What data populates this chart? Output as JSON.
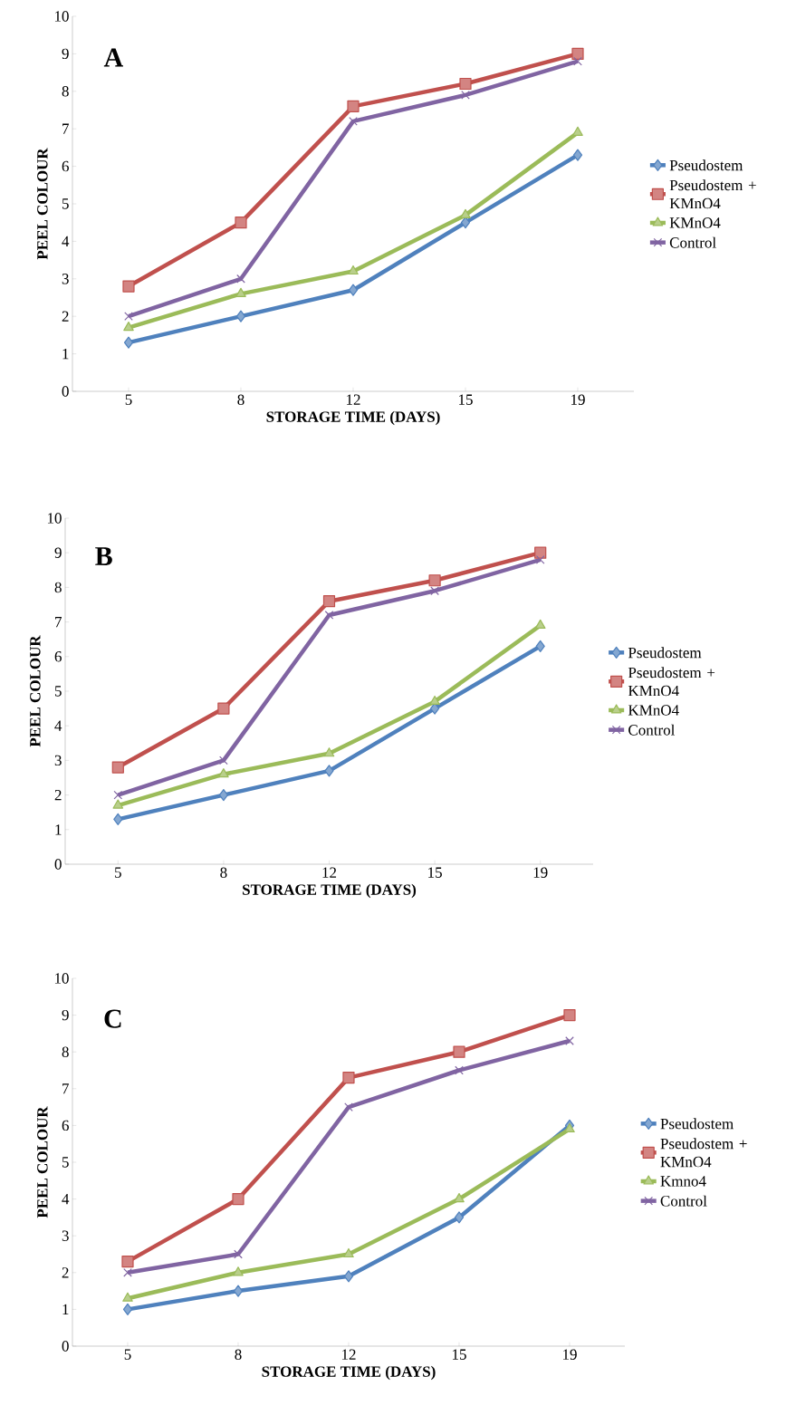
{
  "chart_data": [
    {
      "type": "line",
      "annotations": [
        "A"
      ],
      "xlabel": "STORAGE TIME (DAYS)",
      "ylabel": "PEEL COLOUR",
      "categories": [
        "5",
        "8",
        "12",
        "15",
        "19"
      ],
      "ylim": [
        0,
        10
      ],
      "yticks": [
        0,
        1,
        2,
        3,
        4,
        5,
        6,
        7,
        8,
        9,
        10
      ],
      "legend": "right",
      "grid": false,
      "line_style": "solid",
      "series": [
        {
          "name": "Pseudostem",
          "color": "#4f81bd",
          "marker": "diamond",
          "values": [
            1.3,
            2.0,
            2.7,
            4.5,
            6.3
          ]
        },
        {
          "name": "Pseudostem + KMnO4",
          "color": "#c0504d",
          "marker": "square",
          "values": [
            2.8,
            4.5,
            7.6,
            8.2,
            9.0
          ]
        },
        {
          "name": "KMnO4",
          "color": "#9bbb59",
          "marker": "triangle",
          "values": [
            1.7,
            2.6,
            3.2,
            4.7,
            6.9
          ]
        },
        {
          "name": "Control",
          "color": "#8064a2",
          "marker": "cross",
          "values": [
            2.0,
            3.0,
            7.2,
            7.9,
            8.8
          ]
        }
      ]
    },
    {
      "type": "line",
      "annotations": [
        "B"
      ],
      "xlabel": "STORAGE TIME (DAYS)",
      "ylabel": "PEEL COLOUR",
      "categories": [
        "5",
        "8",
        "12",
        "15",
        "19"
      ],
      "ylim": [
        0,
        10
      ],
      "yticks": [
        0,
        1,
        2,
        3,
        4,
        5,
        6,
        7,
        8,
        9,
        10
      ],
      "legend": "right",
      "grid": false,
      "line_style": "solid",
      "series": [
        {
          "name": "Pseudostem",
          "color": "#4f81bd",
          "marker": "diamond",
          "values": [
            1.3,
            2.0,
            2.7,
            4.5,
            6.3
          ]
        },
        {
          "name": "Pseudostem + KMnO4",
          "color": "#c0504d",
          "marker": "square",
          "values": [
            2.8,
            4.5,
            7.6,
            8.2,
            9.0
          ]
        },
        {
          "name": "KMnO4",
          "color": "#9bbb59",
          "marker": "triangle",
          "values": [
            1.7,
            2.6,
            3.2,
            4.7,
            6.9
          ]
        },
        {
          "name": "Control",
          "color": "#8064a2",
          "marker": "cross",
          "values": [
            2.0,
            3.0,
            7.2,
            7.9,
            8.8
          ]
        }
      ]
    },
    {
      "type": "line",
      "annotations": [
        "C"
      ],
      "xlabel": "STORAGE TIME (DAYS)",
      "ylabel": "PEEL COLOUR",
      "categories": [
        "5",
        "8",
        "12",
        "15",
        "19"
      ],
      "ylim": [
        0,
        10
      ],
      "yticks": [
        0,
        1,
        2,
        3,
        4,
        5,
        6,
        7,
        8,
        9,
        10
      ],
      "legend": "right",
      "grid": false,
      "line_style": "solid",
      "series": [
        {
          "name": "Pseudostem",
          "color": "#4f81bd",
          "marker": "diamond",
          "values": [
            1.0,
            1.5,
            1.9,
            3.5,
            6.0
          ]
        },
        {
          "name": "Pseudostem + KMnO4",
          "color": "#c0504d",
          "marker": "square",
          "values": [
            2.3,
            4.0,
            7.3,
            8.0,
            9.0
          ]
        },
        {
          "name": "Kmno4",
          "color": "#9bbb59",
          "marker": "triangle",
          "values": [
            1.3,
            2.0,
            2.5,
            4.0,
            5.9
          ]
        },
        {
          "name": "Control",
          "color": "#8064a2",
          "marker": "cross",
          "values": [
            2.0,
            2.5,
            6.5,
            7.5,
            8.3
          ]
        }
      ]
    }
  ]
}
